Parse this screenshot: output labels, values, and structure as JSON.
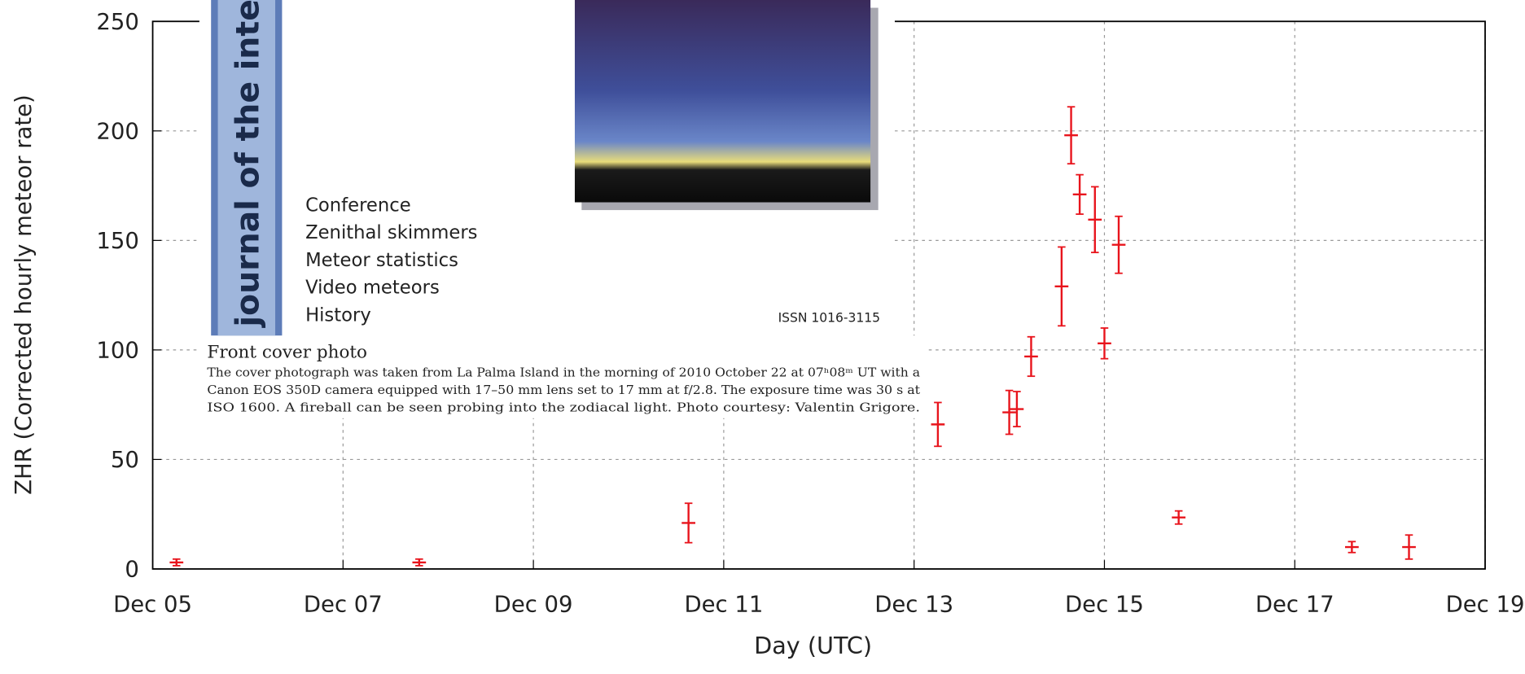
{
  "chart_data": {
    "type": "scatter",
    "xlabel": "Day (UTC)",
    "ylabel": "ZHR (Corrected hourly meteor rate)",
    "x": [
      5.25,
      7.8,
      10.63,
      13.25,
      14.0,
      14.08,
      14.23,
      14.55,
      14.65,
      14.74,
      14.9,
      15.0,
      15.15,
      15.78,
      17.6,
      18.2
    ],
    "values": [
      3,
      3,
      21,
      66,
      71.5,
      73,
      97,
      129,
      198,
      171,
      159.5,
      103,
      148,
      23.5,
      10,
      10
    ],
    "errors": [
      1.5,
      1.5,
      9,
      10,
      10,
      8,
      9,
      18,
      13,
      9,
      15,
      7,
      13,
      3,
      2.5,
      5.5
    ],
    "color": "#e8141c",
    "xlim": [
      5,
      19
    ],
    "xticks": [
      {
        "value": 5,
        "label": "Dec 05"
      },
      {
        "value": 7,
        "label": "Dec 07"
      },
      {
        "value": 9,
        "label": "Dec 09"
      },
      {
        "value": 11,
        "label": "Dec 11"
      },
      {
        "value": 13,
        "label": "Dec 13"
      },
      {
        "value": 15,
        "label": "Dec 15"
      },
      {
        "value": 17,
        "label": "Dec 17"
      },
      {
        "value": 19,
        "label": "Dec 19"
      }
    ],
    "ylim": [
      0,
      250
    ],
    "yticks": [
      0,
      50,
      100,
      150,
      200,
      250
    ],
    "grid": true
  },
  "overlay": {
    "spine": "journal of the interr",
    "contents": [
      "Conference",
      "Zenithal skimmers",
      "Meteor statistics",
      "Video meteors",
      "History"
    ],
    "issn": "ISSN 1016-3115",
    "caption_title": "Front cover photo",
    "caption_lines": [
      "The cover photograph was taken from La Palma Island in the morning of 2010 October 22 at 07ʰ08ᵐ UT with a",
      "Canon EOS 350D camera equipped with 17–50 mm lens set to 17 mm at f/2.8. The exposure time was 30 s at",
      "ISO 1600. A fireball can be seen probing into the zodiacal light. Photo courtesy: Valentin Grigore."
    ]
  }
}
